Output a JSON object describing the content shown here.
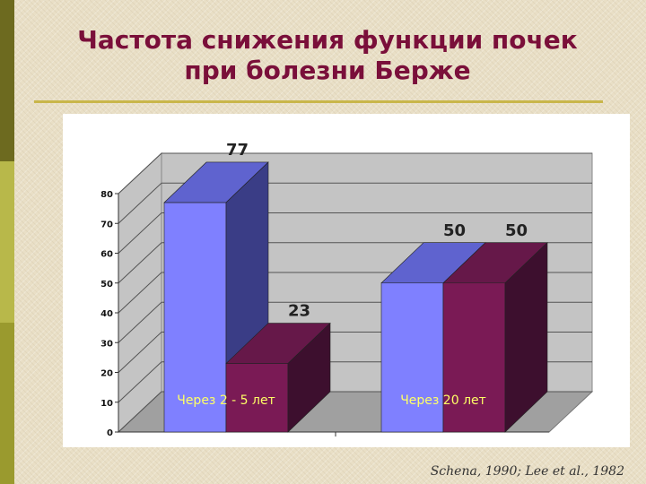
{
  "header": {
    "title_line1": "Частота снижения функции почек",
    "title_line2": "при болезни Берже"
  },
  "footer": {
    "source": "Schena, 1990;  Lee et al., 1982"
  },
  "chart_data": {
    "type": "bar",
    "categories": [
      "Через 2 - 5 лет",
      "Через 20 лет"
    ],
    "series": [
      {
        "values": [
          77,
          50
        ],
        "color": "#7f80ff"
      },
      {
        "values": [
          23,
          50
        ],
        "color": "#7a1a55"
      }
    ],
    "data_labels": [
      "77",
      "23",
      "50",
      "50"
    ],
    "ylim": [
      0,
      80
    ],
    "yticks": [
      0,
      10,
      20,
      30,
      40,
      50,
      60,
      70,
      80
    ],
    "title": "",
    "xlabel": "",
    "ylabel": "",
    "grid": true
  }
}
